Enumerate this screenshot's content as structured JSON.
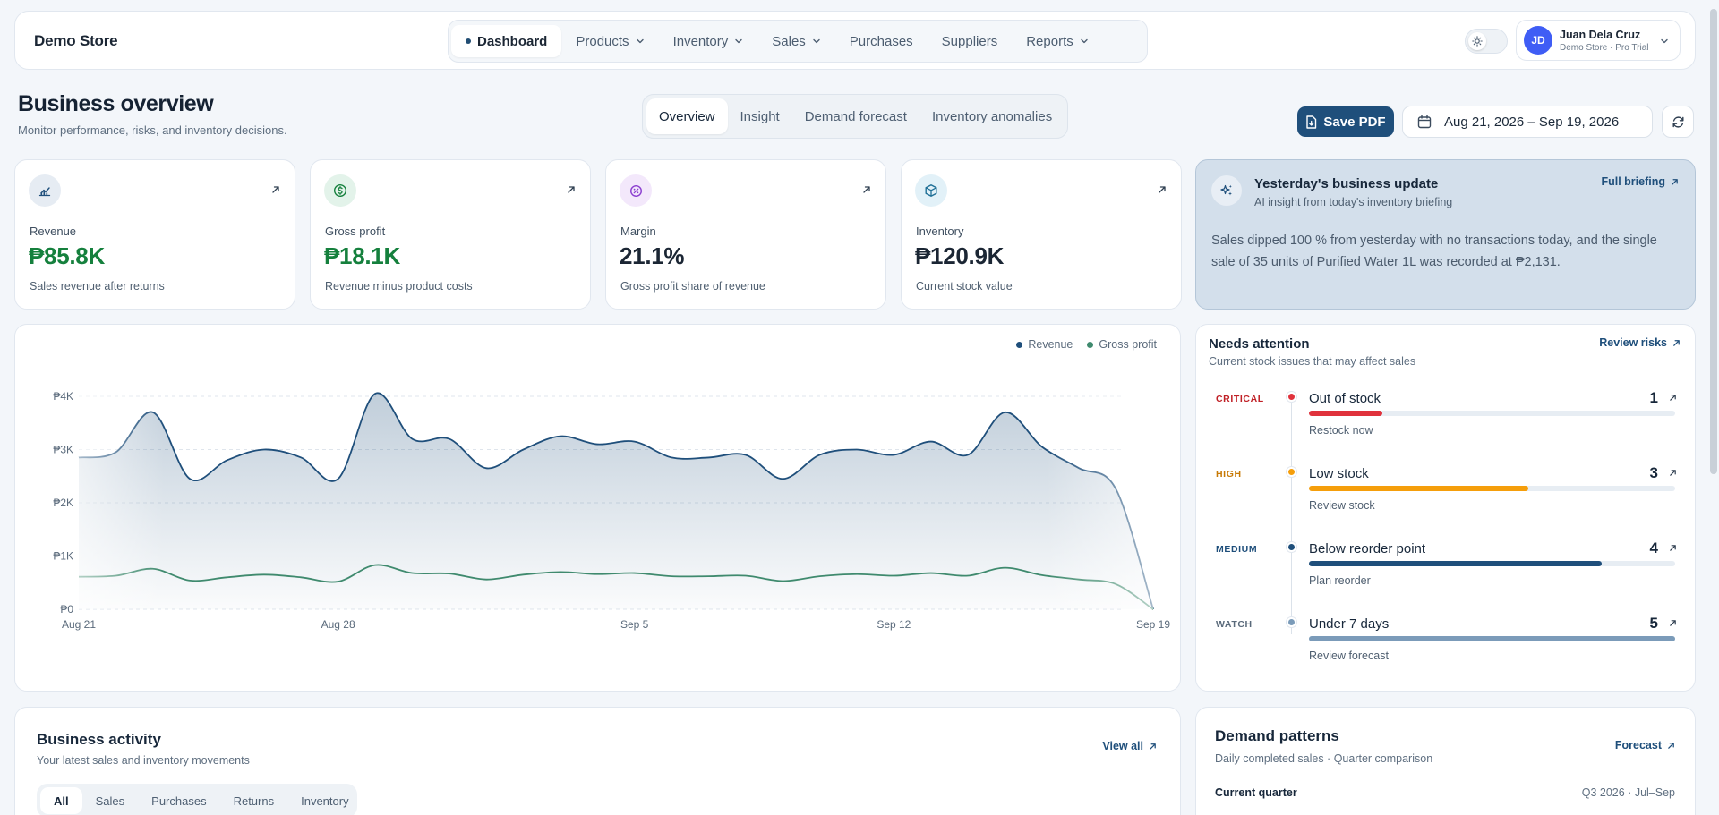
{
  "app": {
    "store_name": "Demo Store"
  },
  "nav": {
    "items": [
      {
        "label": "Dashboard",
        "active": true,
        "dropdown": false
      },
      {
        "label": "Products",
        "active": false,
        "dropdown": true
      },
      {
        "label": "Inventory",
        "active": false,
        "dropdown": true
      },
      {
        "label": "Sales",
        "active": false,
        "dropdown": true
      },
      {
        "label": "Purchases",
        "active": false,
        "dropdown": false
      },
      {
        "label": "Suppliers",
        "active": false,
        "dropdown": false
      },
      {
        "label": "Reports",
        "active": false,
        "dropdown": true
      }
    ]
  },
  "user": {
    "initials": "JD",
    "name": "Juan Dela Cruz",
    "plan": "Demo Store · Pro Trial"
  },
  "header": {
    "title": "Business overview",
    "subtitle": "Monitor performance, risks, and inventory decisions.",
    "tabs": [
      "Overview",
      "Insight",
      "Demand forecast",
      "Inventory anomalies"
    ],
    "active_tab": "Overview",
    "save_label": "Save PDF",
    "date_range": "Aug 21, 2026 – Sep 19, 2026"
  },
  "kpis": [
    {
      "label": "Revenue",
      "value": "₱85.8K",
      "sub": "Sales revenue after returns",
      "color": "#15803d",
      "icon": "chart-icon"
    },
    {
      "label": "Gross profit",
      "value": "₱18.1K",
      "sub": "Revenue minus product costs",
      "color": "#15803d",
      "icon": "dollar-icon"
    },
    {
      "label": "Margin",
      "value": "21.1%",
      "sub": "Gross profit share of revenue",
      "color": "#1b2634",
      "icon": "percent-icon"
    },
    {
      "label": "Inventory",
      "value": "₱120.9K",
      "sub": "Current stock value",
      "color": "#1b2634",
      "icon": "box-icon"
    }
  ],
  "ai_update": {
    "title": "Yesterday's business update",
    "subtitle": "AI insight from today's inventory briefing",
    "link": "Full briefing",
    "body": "Sales dipped 100 % from yesterday with no transactions today, and the single sale of 35 units of Purified Water 1L was recorded at ₱2,131."
  },
  "chart_data": {
    "type": "area",
    "title": "",
    "x_ticks": [
      "Aug 21",
      "Aug 28",
      "Sep 5",
      "Sep 12",
      "Sep 19"
    ],
    "x": [
      "Aug 21",
      "Aug 22",
      "Aug 23",
      "Aug 24",
      "Aug 25",
      "Aug 26",
      "Aug 27",
      "Aug 28",
      "Aug 29",
      "Aug 30",
      "Aug 31",
      "Sep 1",
      "Sep 2",
      "Sep 3",
      "Sep 4",
      "Sep 5",
      "Sep 6",
      "Sep 7",
      "Sep 8",
      "Sep 9",
      "Sep 10",
      "Sep 11",
      "Sep 12",
      "Sep 13",
      "Sep 14",
      "Sep 15",
      "Sep 16",
      "Sep 17",
      "Sep 18",
      "Sep 19"
    ],
    "y_ticks": [
      "₱0",
      "₱1K",
      "₱2K",
      "₱3K",
      "₱4K"
    ],
    "ylim": [
      0,
      4000
    ],
    "series": [
      {
        "name": "Revenue",
        "color": "#1f4f7b",
        "values": [
          2850,
          2950,
          3700,
          2450,
          2800,
          3000,
          2850,
          2450,
          4050,
          3200,
          3200,
          2650,
          3000,
          3250,
          3100,
          3150,
          2850,
          2850,
          2900,
          2450,
          2900,
          3000,
          2900,
          3150,
          2900,
          3700,
          3050,
          2650,
          2250,
          0
        ]
      },
      {
        "name": "Gross profit",
        "color": "#3f8a6e",
        "values": [
          610,
          630,
          760,
          540,
          600,
          650,
          600,
          520,
          830,
          680,
          670,
          560,
          650,
          700,
          660,
          680,
          620,
          620,
          630,
          530,
          620,
          660,
          630,
          680,
          630,
          780,
          640,
          560,
          470,
          0
        ]
      }
    ],
    "legend_position": "top-right",
    "grid": true
  },
  "attention": {
    "title": "Needs attention",
    "subtitle": "Current stock issues that may affect sales",
    "link": "Review risks",
    "items": [
      {
        "severity": "CRITICAL",
        "name": "Out of stock",
        "count": "1",
        "action": "Restock now",
        "color": "#e0323c",
        "sev_color": "#c02026",
        "fill": 0.2
      },
      {
        "severity": "HIGH",
        "name": "Low stock",
        "count": "3",
        "action": "Review stock",
        "color": "#f59e0b",
        "sev_color": "#c77a06",
        "fill": 0.6
      },
      {
        "severity": "MEDIUM",
        "name": "Below reorder point",
        "count": "4",
        "action": "Plan reorder",
        "color": "#1f4f7b",
        "sev_color": "#1f4f7b",
        "fill": 0.8
      },
      {
        "severity": "WATCH",
        "name": "Under 7 days",
        "count": "5",
        "action": "Review forecast",
        "color": "#7b9bb9",
        "sev_color": "#5a6a7b",
        "fill": 1.0
      }
    ]
  },
  "activity": {
    "title": "Business activity",
    "subtitle": "Your latest sales and inventory movements",
    "link": "View all",
    "filters": [
      "All",
      "Sales",
      "Purchases",
      "Returns",
      "Inventory"
    ],
    "active_filter": "All"
  },
  "demand": {
    "title": "Demand patterns",
    "subtitle": "Daily completed sales · Quarter comparison",
    "link": "Forecast",
    "label": "Current quarter",
    "range": "Q3 2026 · Jul–Sep"
  }
}
